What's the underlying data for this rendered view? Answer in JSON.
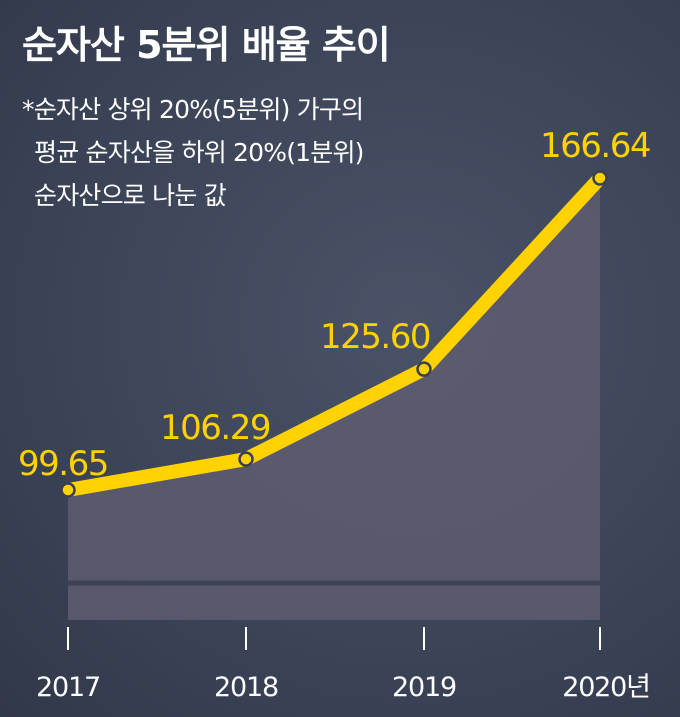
{
  "title": "순자산 5분위 배율 추이",
  "note_lines": [
    "*순자산 상위 20%(5분위) 가구의",
    "평균 순자산을 하위 20%(1분위)",
    "순자산으로 나눈 값"
  ],
  "colors": {
    "background": "#3b4458",
    "line": "#ffd200",
    "area": "#5f5c70",
    "text": "#ffffff"
  },
  "chart_data": {
    "type": "area",
    "categories": [
      "2017",
      "2018",
      "2019",
      "2020년"
    ],
    "values": [
      99.65,
      106.29,
      125.6,
      166.64
    ],
    "value_labels": [
      "99.65",
      "106.29",
      "125.60",
      "166.64"
    ],
    "title": "순자산 5분위 배율 추이",
    "xlabel": "",
    "ylabel": "",
    "grid": false
  }
}
